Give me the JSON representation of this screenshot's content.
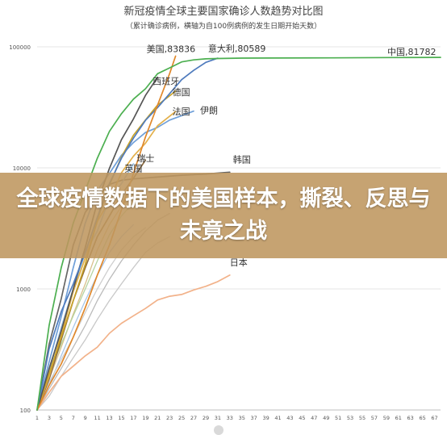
{
  "banner": {
    "text": "全球疫情数据下的美国样本，撕裂、反思与未竟之战"
  },
  "chart_data": {
    "type": "line",
    "title": "新冠疫情全球主要国家确诊人数趋势对比图",
    "subtitle": "（累计确诊病例，横轴为自100例病例的发生日期开始天数）",
    "y_scale": "log",
    "ylim": [
      100,
      100000
    ],
    "y_ticks": [
      {
        "value": 100,
        "label": "100"
      },
      {
        "value": 1000,
        "label": "1000"
      },
      {
        "value": 10000,
        "label": "10000"
      },
      {
        "value": 100000,
        "label": "100000"
      }
    ],
    "xlim": [
      1,
      68
    ],
    "x_ticks": [
      1,
      3,
      5,
      7,
      9,
      11,
      13,
      15,
      17,
      19,
      21,
      23,
      25,
      27,
      29,
      31,
      33,
      35,
      37,
      39,
      41,
      43,
      45,
      47,
      49,
      51,
      53,
      55,
      57,
      59,
      61,
      63,
      65,
      67
    ],
    "grid": "horizontal",
    "series": [
      {
        "name": "中国",
        "color": "#4caf50",
        "label": "中国,81782",
        "points": [
          [
            1,
            100
          ],
          [
            3,
            500
          ],
          [
            5,
            1500
          ],
          [
            7,
            3500
          ],
          [
            9,
            6500
          ],
          [
            11,
            12000
          ],
          [
            13,
            20000
          ],
          [
            15,
            28000
          ],
          [
            17,
            37000
          ],
          [
            19,
            45000
          ],
          [
            21,
            60000
          ],
          [
            23,
            67000
          ],
          [
            25,
            75000
          ],
          [
            27,
            78000
          ],
          [
            29,
            79500
          ],
          [
            31,
            80000
          ],
          [
            35,
            80600
          ],
          [
            40,
            80800
          ],
          [
            50,
            81000
          ],
          [
            60,
            81500
          ],
          [
            68,
            81782
          ]
        ]
      },
      {
        "name": "美国",
        "color": "#e0882b",
        "label": "美国,83836",
        "points": [
          [
            1,
            100
          ],
          [
            3,
            160
          ],
          [
            5,
            240
          ],
          [
            7,
            400
          ],
          [
            9,
            700
          ],
          [
            11,
            1300
          ],
          [
            13,
            2300
          ],
          [
            15,
            4500
          ],
          [
            17,
            9000
          ],
          [
            19,
            18000
          ],
          [
            21,
            33000
          ],
          [
            23,
            60000
          ],
          [
            24,
            83836
          ]
        ]
      },
      {
        "name": "意大利",
        "color": "#4f7bbd",
        "label": "意大利,80589",
        "points": [
          [
            1,
            100
          ],
          [
            3,
            320
          ],
          [
            5,
            650
          ],
          [
            7,
            1100
          ],
          [
            9,
            2000
          ],
          [
            11,
            3900
          ],
          [
            13,
            7400
          ],
          [
            15,
            12000
          ],
          [
            17,
            17600
          ],
          [
            19,
            24700
          ],
          [
            21,
            31500
          ],
          [
            23,
            41000
          ],
          [
            25,
            53500
          ],
          [
            27,
            63900
          ],
          [
            29,
            74400
          ],
          [
            31,
            80589
          ]
        ]
      },
      {
        "name": "西班牙",
        "color": "#555555",
        "label": "西班牙",
        "points": [
          [
            1,
            100
          ],
          [
            3,
            220
          ],
          [
            5,
            450
          ],
          [
            7,
            1000
          ],
          [
            9,
            2200
          ],
          [
            11,
            5200
          ],
          [
            13,
            9900
          ],
          [
            15,
            17100
          ],
          [
            17,
            25400
          ],
          [
            19,
            39700
          ],
          [
            21,
            56100
          ]
        ]
      },
      {
        "name": "德国",
        "color": "#c9a227",
        "label": "德国",
        "points": [
          [
            1,
            100
          ],
          [
            3,
            200
          ],
          [
            5,
            400
          ],
          [
            7,
            800
          ],
          [
            9,
            1600
          ],
          [
            11,
            3700
          ],
          [
            13,
            7200
          ],
          [
            15,
            12300
          ],
          [
            17,
            18600
          ],
          [
            19,
            24900
          ],
          [
            21,
            33000
          ],
          [
            24,
            43000
          ]
        ]
      },
      {
        "name": "法国",
        "color": "#e3b04b",
        "label": "法国",
        "points": [
          [
            1,
            100
          ],
          [
            3,
            190
          ],
          [
            5,
            420
          ],
          [
            7,
            950
          ],
          [
            9,
            1800
          ],
          [
            11,
            3600
          ],
          [
            13,
            5400
          ],
          [
            15,
            9100
          ],
          [
            17,
            12500
          ],
          [
            19,
            16000
          ],
          [
            21,
            22300
          ],
          [
            24,
            29200
          ]
        ]
      },
      {
        "name": "伊朗",
        "color": "#6f9fd8",
        "label": "伊朗",
        "points": [
          [
            1,
            100
          ],
          [
            3,
            250
          ],
          [
            5,
            590
          ],
          [
            7,
            1500
          ],
          [
            9,
            3500
          ],
          [
            11,
            6500
          ],
          [
            13,
            9000
          ],
          [
            15,
            12700
          ],
          [
            17,
            16200
          ],
          [
            19,
            19600
          ],
          [
            21,
            21600
          ],
          [
            23,
            24800
          ],
          [
            25,
            27000
          ],
          [
            27,
            29400
          ]
        ]
      },
      {
        "name": "瑞士",
        "color": "#9bc2e6",
        "label": "瑞士",
        "points": [
          [
            1,
            100
          ],
          [
            3,
            210
          ],
          [
            5,
            480
          ],
          [
            7,
            1000
          ],
          [
            9,
            2000
          ],
          [
            11,
            3000
          ],
          [
            13,
            5600
          ],
          [
            15,
            7400
          ],
          [
            17,
            10800
          ]
        ]
      },
      {
        "name": "英国",
        "color": "#8c6b3e",
        "label": "英国",
        "points": [
          [
            1,
            100
          ],
          [
            3,
            180
          ],
          [
            5,
            380
          ],
          [
            7,
            800
          ],
          [
            9,
            1500
          ],
          [
            11,
            2700
          ],
          [
            13,
            4000
          ],
          [
            15,
            6000
          ],
          [
            17,
            8200
          ],
          [
            19,
            11600
          ]
        ]
      },
      {
        "name": "韩国",
        "color": "#666666",
        "label": "韩国",
        "points": [
          [
            1,
            100
          ],
          [
            3,
            350
          ],
          [
            5,
            830
          ],
          [
            7,
            2300
          ],
          [
            9,
            4300
          ],
          [
            11,
            5800
          ],
          [
            13,
            7300
          ],
          [
            15,
            7900
          ],
          [
            17,
            8100
          ],
          [
            21,
            8400
          ],
          [
            25,
            8700
          ],
          [
            29,
            8900
          ],
          [
            33,
            9200
          ]
        ]
      },
      {
        "name": "日本",
        "color": "#f2b28a",
        "label": "日本",
        "points": [
          [
            1,
            100
          ],
          [
            3,
            140
          ],
          [
            5,
            190
          ],
          [
            7,
            230
          ],
          [
            9,
            280
          ],
          [
            11,
            330
          ],
          [
            13,
            430
          ],
          [
            15,
            520
          ],
          [
            17,
            600
          ],
          [
            19,
            690
          ],
          [
            21,
            810
          ],
          [
            23,
            870
          ],
          [
            25,
            900
          ],
          [
            27,
            980
          ],
          [
            29,
            1050
          ],
          [
            31,
            1150
          ],
          [
            33,
            1300
          ]
        ]
      },
      {
        "name": "",
        "color": "#bbbbbb",
        "label": "",
        "points": [
          [
            1,
            100
          ],
          [
            3,
            150
          ],
          [
            5,
            220
          ],
          [
            7,
            330
          ],
          [
            9,
            500
          ],
          [
            11,
            800
          ],
          [
            13,
            1200
          ],
          [
            15,
            1700
          ],
          [
            17,
            2300
          ],
          [
            19,
            3000
          ],
          [
            21,
            3700
          ],
          [
            23,
            4200
          ]
        ]
      },
      {
        "name": "",
        "color": "#c8c8c8",
        "label": "",
        "points": [
          [
            1,
            100
          ],
          [
            3,
            130
          ],
          [
            5,
            190
          ],
          [
            7,
            270
          ],
          [
            9,
            380
          ],
          [
            11,
            560
          ],
          [
            13,
            800
          ],
          [
            15,
            1100
          ],
          [
            17,
            1500
          ],
          [
            19,
            2000
          ],
          [
            21,
            2400
          ],
          [
            23,
            2700
          ]
        ]
      },
      {
        "name": "",
        "color": "#cfcfcf",
        "label": "",
        "points": [
          [
            1,
            100
          ],
          [
            3,
            170
          ],
          [
            5,
            260
          ],
          [
            7,
            400
          ],
          [
            9,
            640
          ],
          [
            11,
            1000
          ],
          [
            13,
            1500
          ],
          [
            15,
            2100
          ],
          [
            17,
            2700
          ],
          [
            19,
            3200
          ]
        ]
      },
      {
        "name": "",
        "color": "#b5d3a0",
        "label": "",
        "points": [
          [
            1,
            100
          ],
          [
            3,
            200
          ],
          [
            5,
            350
          ],
          [
            7,
            600
          ],
          [
            9,
            1000
          ],
          [
            11,
            1700
          ],
          [
            13,
            2800
          ],
          [
            15,
            4000
          ],
          [
            17,
            5200
          ],
          [
            19,
            6300
          ]
        ]
      },
      {
        "name": "",
        "color": "#d8c08a",
        "label": "",
        "points": [
          [
            1,
            100
          ],
          [
            3,
            180
          ],
          [
            5,
            330
          ],
          [
            7,
            620
          ],
          [
            9,
            1100
          ],
          [
            11,
            2100
          ],
          [
            13,
            3400
          ],
          [
            15,
            4800
          ],
          [
            17,
            6200
          ]
        ]
      },
      {
        "name": "",
        "color": "#a8c6e8",
        "label": "",
        "points": [
          [
            1,
            100
          ],
          [
            3,
            160
          ],
          [
            5,
            280
          ],
          [
            7,
            480
          ],
          [
            9,
            800
          ],
          [
            11,
            1300
          ],
          [
            13,
            2000
          ],
          [
            15,
            2700
          ],
          [
            17,
            3400
          ]
        ]
      }
    ]
  }
}
